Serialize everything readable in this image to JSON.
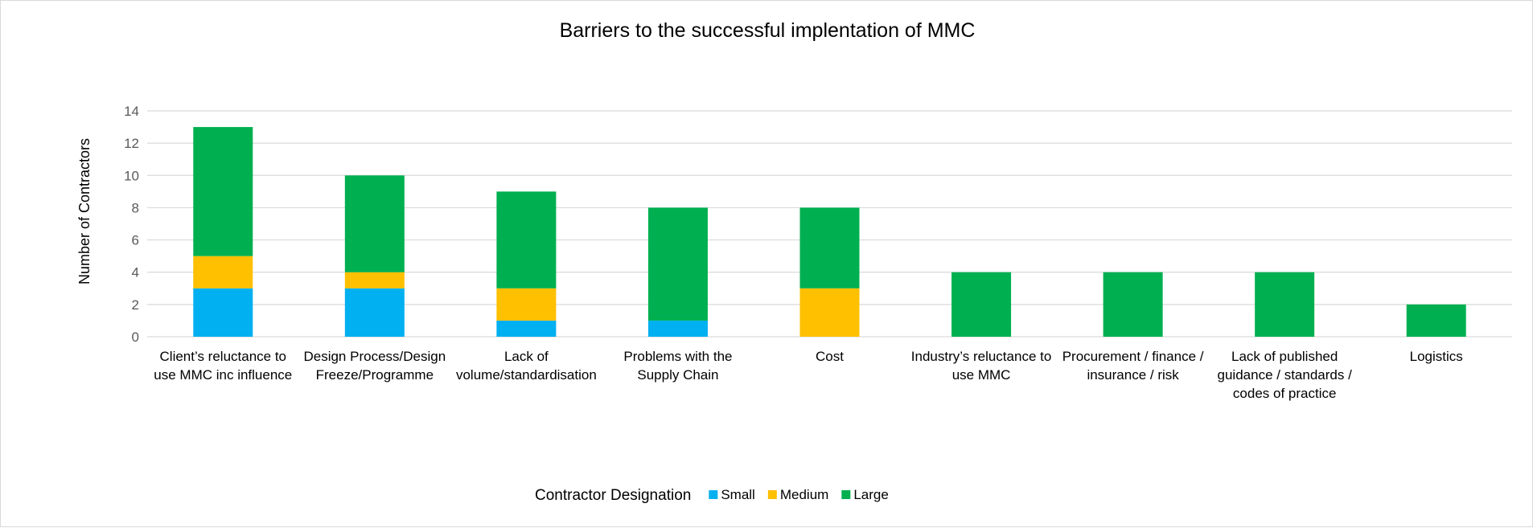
{
  "chart_data": {
    "type": "bar",
    "stacked": true,
    "title": "Barriers to the successful implentation of MMC",
    "xlabel": "",
    "ylabel": "Number of Contractors",
    "ylim": [
      0,
      14
    ],
    "yticks": [
      0,
      2,
      4,
      6,
      8,
      10,
      12,
      14
    ],
    "grid": true,
    "legend": {
      "title": "Contractor Designation",
      "placement": "bottom"
    },
    "categories": [
      [
        "Client’s reluctance to",
        "use MMC inc influence"
      ],
      [
        "Design Process/Design",
        "Freeze/Programme"
      ],
      [
        "Lack of",
        "volume/standardisation"
      ],
      [
        "Problems with the",
        "Supply Chain"
      ],
      [
        "Cost"
      ],
      [
        "Industry’s reluctance to",
        "use MMC"
      ],
      [
        "Procurement / finance /",
        "insurance / risk"
      ],
      [
        "Lack of published",
        "guidance / standards /",
        "codes of practice"
      ],
      [
        "Logistics"
      ]
    ],
    "series": [
      {
        "name": "Small",
        "color": "#00b0f0",
        "values": [
          3,
          3,
          1,
          1,
          0,
          0,
          0,
          0,
          0
        ]
      },
      {
        "name": "Medium",
        "color": "#ffc000",
        "values": [
          2,
          1,
          2,
          0,
          3,
          0,
          0,
          0,
          0
        ]
      },
      {
        "name": "Large",
        "color": "#00b050",
        "values": [
          8,
          6,
          6,
          7,
          5,
          4,
          4,
          4,
          2
        ]
      }
    ]
  },
  "colors": {
    "gridline": "#d9d9d9",
    "tick_text": "#595959",
    "text": "#000000"
  }
}
